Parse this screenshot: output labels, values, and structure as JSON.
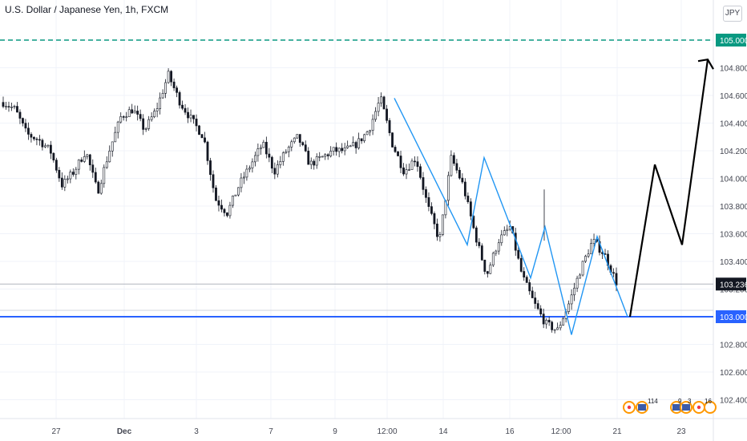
{
  "chart_data": {
    "type": "candlestick",
    "title": "U.S. Dollar / Japanese Yen, 1h, FXCM",
    "currency": "JPY",
    "ylim": [
      102.3,
      105.4
    ],
    "y_ticks": [
      "104.800",
      "104.600",
      "104.400",
      "104.200",
      "104.000",
      "103.800",
      "103.600",
      "103.400",
      "103.200",
      "102.800",
      "102.600",
      "102.400"
    ],
    "x_labels": [
      "27",
      "Dec",
      "3",
      "7",
      "9",
      "12:00",
      "14",
      "16",
      "12:00",
      "21",
      "23"
    ],
    "price_path": [
      104.55,
      104.5,
      104.32,
      104.28,
      104.2,
      103.95,
      104.05,
      104.2,
      103.9,
      104.2,
      104.45,
      104.5,
      104.35,
      104.5,
      104.75,
      104.55,
      104.42,
      104.3,
      103.85,
      103.75,
      103.95,
      104.1,
      104.25,
      104.05,
      104.2,
      104.3,
      104.1,
      104.15,
      104.2,
      104.2,
      104.25,
      104.35,
      104.58,
      104.25,
      104.05,
      104.15,
      103.8,
      103.55,
      104.15,
      103.95,
      103.6,
      103.3,
      103.55,
      103.65,
      103.3,
      103.1,
      102.95,
      102.9,
      103.1,
      103.35,
      103.55,
      103.45,
      103.25
    ],
    "horizontal_levels": [
      {
        "price": "105.000",
        "style": "dashed",
        "color": "#089981"
      },
      {
        "price": "103.000",
        "style": "solid",
        "color": "#2962ff"
      }
    ],
    "current_price": "103.236",
    "pattern_polyline": [
      104.58,
      103.52,
      104.15,
      103.28,
      103.65,
      102.87,
      103.58,
      103.0
    ],
    "projection_polyline": [
      103.0,
      104.1,
      103.52,
      104.86
    ]
  },
  "events": {
    "count_a": "114",
    "count_b": "9",
    "count_c": "3",
    "count_d": "16"
  }
}
